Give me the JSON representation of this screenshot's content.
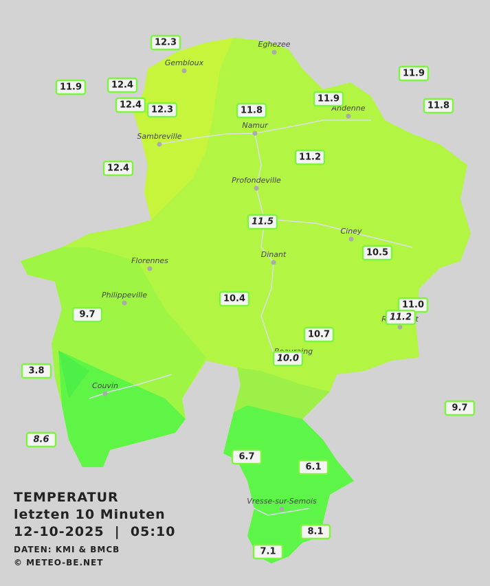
{
  "legend": {
    "title": "TEMPERATUR",
    "subtitle": "letzten 10 Minuten",
    "timestamp": "12-10-2025  |  05:10",
    "source": "DATEN: KMI & BMCB",
    "copyright": "© METEO-BE.NET"
  },
  "cities": [
    "Eghezee",
    "Gembloux",
    "Sambreville",
    "Namur",
    "Andenne",
    "Profondeville",
    "Ciney",
    "Florennes",
    "Dinant",
    "Philippeville",
    "Couvin",
    "Vresse-sur-Semois",
    "Beauraing",
    "Rochefort"
  ],
  "stations": [
    {
      "value": "12.3"
    },
    {
      "value": "12.4"
    },
    {
      "value": "11.9"
    },
    {
      "value": "12.4"
    },
    {
      "value": "12.3"
    },
    {
      "value": "11.8"
    },
    {
      "value": "11.9"
    },
    {
      "value": "11.9"
    },
    {
      "value": "11.8"
    },
    {
      "value": "12.4"
    },
    {
      "value": "11.2"
    },
    {
      "value": "11.5",
      "italic": true
    },
    {
      "value": "10.5"
    },
    {
      "value": "10.4"
    },
    {
      "value": "9.7"
    },
    {
      "value": "11.0"
    },
    {
      "value": "11.2",
      "italic": true
    },
    {
      "value": "10.7"
    },
    {
      "value": "10.0",
      "italic": true
    },
    {
      "value": "3.8"
    },
    {
      "value": "9.7"
    },
    {
      "value": "8.6",
      "italic": true
    },
    {
      "value": "6.7"
    },
    {
      "value": "6.1"
    },
    {
      "value": "8.1"
    },
    {
      "value": "7.1"
    }
  ]
}
